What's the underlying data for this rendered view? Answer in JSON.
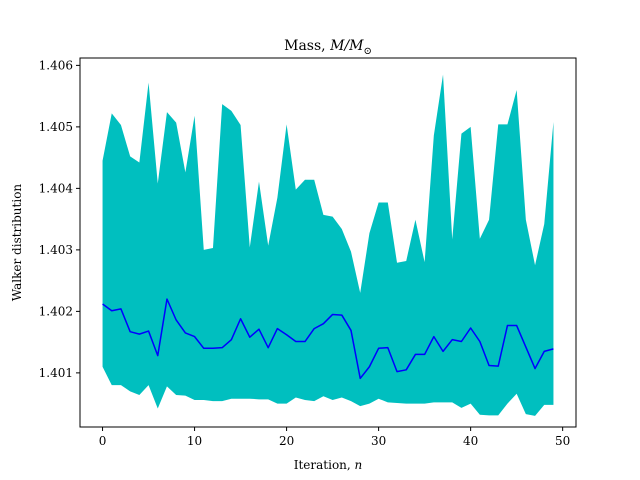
{
  "chart_data": {
    "type": "area",
    "title": "Mass, ",
    "title_math": "M/M",
    "title_sub": "⊙",
    "xlabel": "Iteration, ",
    "xlabel_math": "n",
    "ylabel": "Walker distribution",
    "xlim": [
      -2.45,
      51.45
    ],
    "ylim": [
      1.40012,
      1.40612
    ],
    "x_ticks": [
      0,
      10,
      20,
      30,
      40,
      50
    ],
    "y_ticks": [
      1.401,
      1.402,
      1.403,
      1.404,
      1.405,
      1.406
    ],
    "x_tick_labels": [
      "0",
      "10",
      "20",
      "30",
      "40",
      "50"
    ],
    "y_tick_labels": [
      "1.401",
      "1.402",
      "1.403",
      "1.404",
      "1.405",
      "1.406"
    ],
    "x": [
      0,
      1,
      2,
      3,
      4,
      5,
      6,
      7,
      8,
      9,
      10,
      11,
      12,
      13,
      14,
      15,
      16,
      17,
      18,
      19,
      20,
      21,
      22,
      23,
      24,
      25,
      26,
      27,
      28,
      29,
      30,
      31,
      32,
      33,
      34,
      35,
      36,
      37,
      38,
      39,
      40,
      41,
      42,
      43,
      44,
      45,
      46,
      47,
      48,
      49
    ],
    "series": [
      {
        "role": "upper",
        "values": [
          1.40445,
          1.40522,
          1.40503,
          1.40452,
          1.40442,
          1.40572,
          1.40408,
          1.40524,
          1.40507,
          1.40426,
          1.40518,
          1.403,
          1.40303,
          1.40537,
          1.40526,
          1.40503,
          1.40304,
          1.40411,
          1.40307,
          1.40385,
          1.40504,
          1.40398,
          1.40414,
          1.40414,
          1.40357,
          1.40354,
          1.40334,
          1.40297,
          1.4023,
          1.40327,
          1.40377,
          1.40377,
          1.40279,
          1.40282,
          1.40349,
          1.4028,
          1.40486,
          1.40585,
          1.40317,
          1.40489,
          1.405,
          1.40318,
          1.40349,
          1.40504,
          1.40504,
          1.4056,
          1.40349,
          1.40275,
          1.40342,
          1.40508
        ]
      },
      {
        "role": "lower",
        "values": [
          1.4011,
          1.4008,
          1.4008,
          1.4007,
          1.40064,
          1.4008,
          1.40042,
          1.40078,
          1.40064,
          1.40063,
          1.40056,
          1.40056,
          1.40054,
          1.40054,
          1.40058,
          1.40058,
          1.40058,
          1.40057,
          1.40057,
          1.4005,
          1.4005,
          1.4006,
          1.40056,
          1.40054,
          1.40062,
          1.40056,
          1.4006,
          1.40054,
          1.40046,
          1.4005,
          1.40058,
          1.40052,
          1.40051,
          1.4005,
          1.4005,
          1.4005,
          1.40052,
          1.40052,
          1.40052,
          1.40043,
          1.4005,
          1.40032,
          1.40031,
          1.40031,
          1.4005,
          1.40066,
          1.40033,
          1.4003,
          1.40048,
          1.40048
        ]
      },
      {
        "role": "median",
        "values": [
          1.40212,
          1.40201,
          1.40204,
          1.40167,
          1.40163,
          1.40168,
          1.40128,
          1.4022,
          1.40186,
          1.40165,
          1.40159,
          1.4014,
          1.4014,
          1.40141,
          1.40154,
          1.40188,
          1.40158,
          1.40171,
          1.40141,
          1.40172,
          1.40162,
          1.40151,
          1.40151,
          1.40172,
          1.4018,
          1.40195,
          1.40194,
          1.40169,
          1.40091,
          1.4011,
          1.4014,
          1.40141,
          1.40102,
          1.40105,
          1.4013,
          1.4013,
          1.40159,
          1.40135,
          1.40154,
          1.40151,
          1.40173,
          1.40151,
          1.40112,
          1.40111,
          1.40177,
          1.40177,
          1.40142,
          1.40107,
          1.40135,
          1.40139
        ]
      }
    ],
    "colors": {
      "band": "#00bfbf",
      "median": "#0000ff"
    },
    "grid": false
  }
}
